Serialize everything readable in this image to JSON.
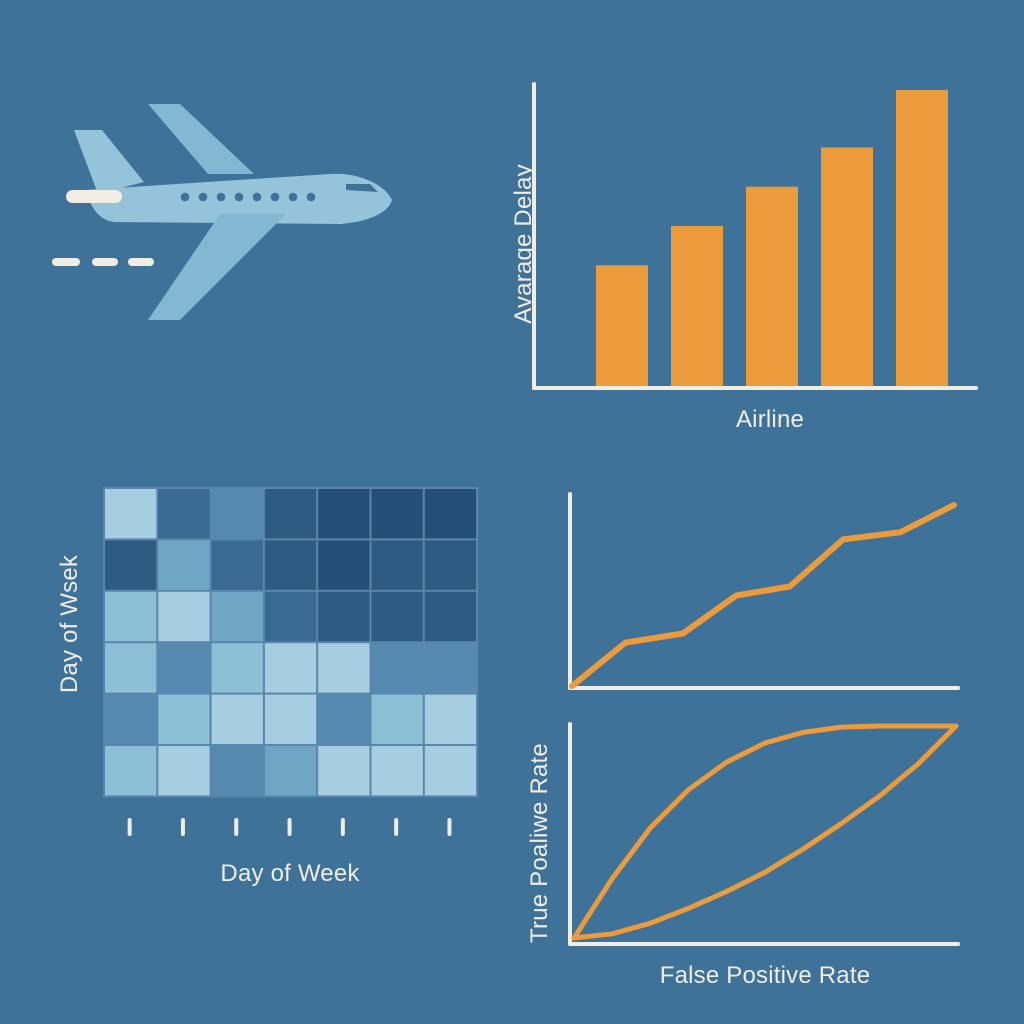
{
  "colors": {
    "background": "#3e7299",
    "axis": "#f1ede2",
    "accent": "#eb9a3c",
    "plane_body": "#95c3da",
    "plane_wing": "#84b8d2",
    "plane_window": "#3e7299",
    "heat_levels": [
      "#a6cde0",
      "#8dbfd6",
      "#6fa6c6",
      "#5689b0",
      "#3a6a93",
      "#2e5b82",
      "#244e76"
    ]
  },
  "illustration": {
    "icon": "airplane-icon"
  },
  "chart_data": [
    {
      "type": "bar",
      "title": "",
      "xlabel": "Airline",
      "ylabel": "Avarage Delay",
      "categories": [
        "",
        "",
        "",
        "",
        ""
      ],
      "values": [
        0.4,
        0.53,
        0.66,
        0.79,
        0.98
      ],
      "ylim": [
        0,
        1
      ],
      "grid": false
    },
    {
      "type": "heatmap",
      "title": "",
      "xlabel": "Day of Week",
      "ylabel": "Day of Wsek",
      "rows": 6,
      "cols": 7,
      "levels": [
        [
          0,
          4,
          3,
          5,
          6,
          6,
          6
        ],
        [
          5,
          2,
          4,
          5,
          6,
          5,
          5
        ],
        [
          1,
          0,
          2,
          4,
          5,
          5,
          5
        ],
        [
          1,
          3,
          1,
          0,
          0,
          3,
          3
        ],
        [
          3,
          1,
          0,
          0,
          3,
          1,
          0
        ],
        [
          1,
          0,
          3,
          2,
          0,
          0,
          0
        ]
      ],
      "grid": false
    },
    {
      "type": "line",
      "title": "",
      "xlabel": "",
      "ylabel": "",
      "x": [
        0,
        0.14,
        0.29,
        0.43,
        0.57,
        0.71,
        0.86,
        1.0
      ],
      "y": [
        0,
        0.24,
        0.29,
        0.5,
        0.55,
        0.81,
        0.85,
        1.0
      ],
      "xlim": [
        0,
        1
      ],
      "ylim": [
        0,
        1.05
      ],
      "grid": false
    },
    {
      "type": "line",
      "title": "",
      "xlabel": "False Positive Rate",
      "ylabel": "True Poaliwe Rate",
      "xlim": [
        0,
        1
      ],
      "ylim": [
        0,
        1
      ],
      "series": [
        {
          "x": [
            0,
            0.05,
            0.1,
            0.2,
            0.3,
            0.4,
            0.5,
            0.6,
            0.7,
            0.8,
            0.9,
            1.0
          ],
          "y": [
            0,
            0.14,
            0.28,
            0.52,
            0.7,
            0.83,
            0.92,
            0.97,
            0.995,
            1.0,
            1.0,
            1.0
          ]
        },
        {
          "x": [
            0,
            0.1,
            0.2,
            0.3,
            0.4,
            0.5,
            0.6,
            0.7,
            0.8,
            0.9,
            1.0
          ],
          "y": [
            0,
            0.02,
            0.07,
            0.14,
            0.22,
            0.31,
            0.42,
            0.54,
            0.67,
            0.82,
            1.0
          ]
        }
      ],
      "grid": false
    }
  ]
}
